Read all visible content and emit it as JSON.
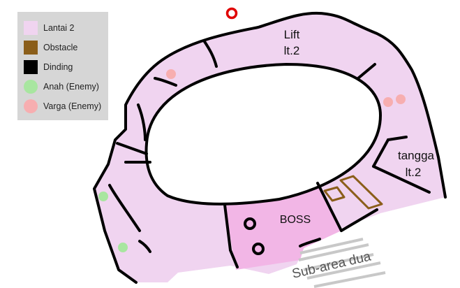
{
  "legend": {
    "items": [
      {
        "label": "Lantai 2",
        "color": "#f0d4f0",
        "shape": "square"
      },
      {
        "label": "Obstacle",
        "color": "#8b5e1a",
        "shape": "square"
      },
      {
        "label": "Dinding",
        "color": "#000000",
        "shape": "square"
      },
      {
        "label": "Anah (Enemy)",
        "color": "#a8e6a0",
        "shape": "circle"
      },
      {
        "label": "Varga (Enemy)",
        "color": "#f7aeb0",
        "shape": "circle"
      }
    ]
  },
  "map": {
    "labels": {
      "lift_line1": "Lift",
      "lift_line2": "lt.2",
      "stairs_line1": "tangga",
      "stairs_line2": "lt.2",
      "boss": "BOSS",
      "subarea": "Sub-area dua"
    },
    "colors": {
      "floor": "#f0d4f0",
      "boss_room": "#f2b6e6",
      "wall": "#000000",
      "obstacle": "#8b5e1a",
      "entry_marker": "#e00000",
      "path": "#c8c8c8"
    },
    "enemies": {
      "anah_count": 2,
      "varga_count": 3
    }
  }
}
